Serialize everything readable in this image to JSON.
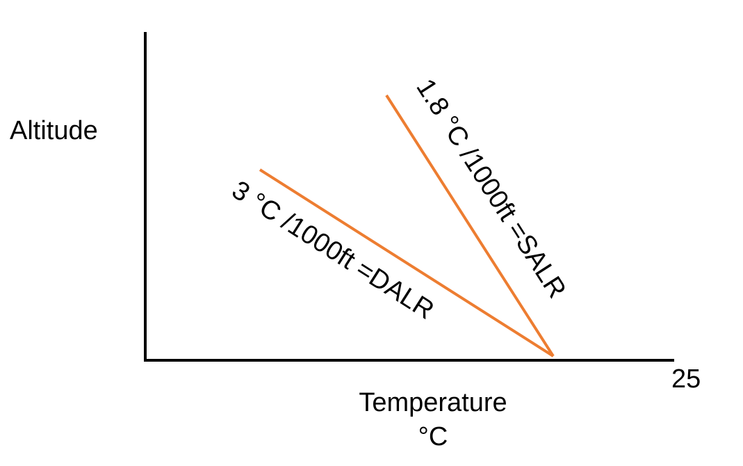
{
  "diagram": {
    "y_axis_label": "Altitude",
    "x_axis_label_line1": "Temperature",
    "x_axis_label_line2": "°C",
    "x_tick_label": "25",
    "lines": [
      {
        "name": "dalr",
        "label": "3 °C /1000ft =DALR",
        "color": "#ED7D31"
      },
      {
        "name": "salr",
        "label": "1.8 °C /1000ft =SALR",
        "color": "#ED7D31"
      }
    ],
    "axis_color": "#000000"
  }
}
